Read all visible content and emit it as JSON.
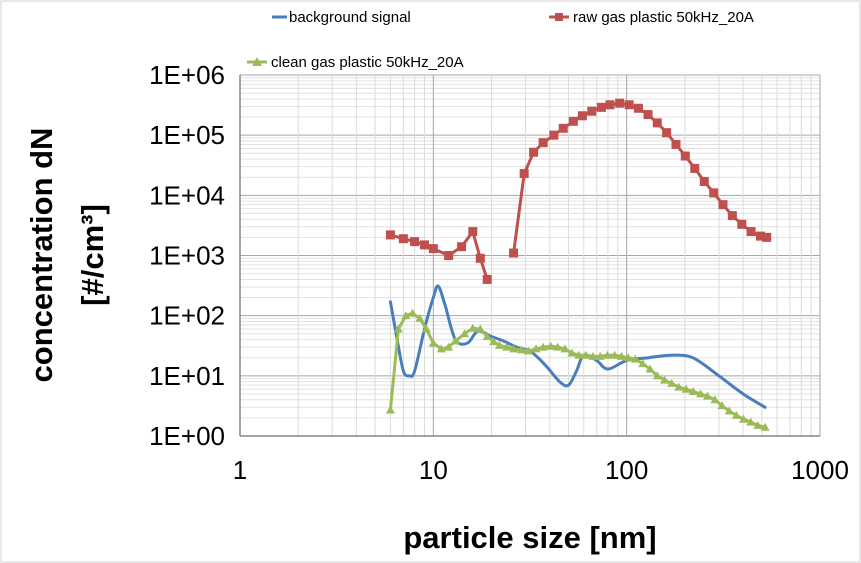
{
  "chart_data": {
    "type": "line",
    "xlabel": "particle size [nm]",
    "ylabel_line1": "concentration dN",
    "ylabel_line2": "[#/cm³]",
    "xscale": "log",
    "yscale": "log",
    "xlim": [
      1,
      1000
    ],
    "ylim": [
      1,
      1000000
    ],
    "x_tick_labels": [
      "1",
      "10",
      "100",
      "1000"
    ],
    "y_tick_labels": [
      "1E+00",
      "1E+01",
      "1E+02",
      "1E+03",
      "1E+04",
      "1E+05",
      "1E+06"
    ],
    "grid": true,
    "legend_position": "top",
    "series": [
      {
        "name": "background signal",
        "color": "#4a7ebb",
        "marker": "none",
        "x": [
          6,
          6.5,
          7,
          7.5,
          8,
          9,
          10,
          10.6,
          11.5,
          13,
          15,
          17,
          20,
          23,
          27,
          32,
          38,
          45,
          50,
          55,
          60,
          70,
          80,
          100,
          130,
          170,
          220,
          300,
          400,
          520
        ],
        "y": [
          170,
          40,
          12,
          10,
          12,
          60,
          200,
          310,
          150,
          40,
          35,
          55,
          45,
          38,
          30,
          25,
          15,
          8,
          7,
          12,
          22,
          18,
          13,
          18,
          20,
          22,
          20,
          10,
          5,
          3
        ]
      },
      {
        "name": "raw gas  plastic  50kHz_20A",
        "color": "#c0504d",
        "marker": "square",
        "segments": [
          {
            "x": [
              6,
              7,
              8,
              9,
              10,
              12,
              14,
              16,
              17.5,
              19
            ],
            "y": [
              2200,
              1900,
              1700,
              1500,
              1300,
              1000,
              1400,
              2500,
              900,
              400
            ]
          },
          {
            "x": [
              26,
              29.5,
              33,
              37,
              42,
              47,
              53,
              59,
              66,
              74,
              82,
              92,
              103,
              115,
              129,
              144,
              161,
              180,
              201,
              225,
              252,
              282,
              315,
              352,
              394,
              440,
              492,
              530
            ],
            "y": [
              1100,
              23000,
              52000,
              75000,
              100000,
              130000,
              170000,
              210000,
              250000,
              290000,
              320000,
              340000,
              320000,
              280000,
              220000,
              160000,
              110000,
              70000,
              45000,
              28000,
              17000,
              11000,
              7000,
              4600,
              3300,
              2500,
              2100,
              2000
            ]
          }
        ]
      },
      {
        "name": "clean gas plastic 50kHz_20A",
        "color": "#9bbb59",
        "marker": "triangle",
        "x": [
          6,
          6.6,
          7.2,
          7.8,
          8.5,
          9.2,
          10,
          11,
          12,
          13,
          14.5,
          16,
          17.5,
          19,
          20.5,
          22,
          24,
          26,
          28.5,
          31,
          34,
          37,
          40.5,
          44,
          48,
          52,
          56.5,
          61.5,
          67,
          73,
          79.5,
          86.5,
          94,
          102,
          111,
          121,
          132,
          144,
          157,
          171,
          186,
          203,
          221,
          241,
          262,
          286,
          311,
          339,
          369,
          402,
          438,
          477,
          520
        ],
        "y": [
          2.7,
          60,
          100,
          110,
          90,
          60,
          35,
          28,
          30,
          38,
          50,
          62,
          60,
          45,
          37,
          32,
          30,
          28,
          27,
          26,
          28,
          30,
          31,
          30,
          28,
          24,
          22,
          22,
          21,
          21,
          22,
          22,
          21,
          20,
          19,
          16,
          13,
          10,
          8.5,
          7.5,
          6.5,
          6,
          5.5,
          5,
          4.6,
          4,
          3.2,
          2.6,
          2.2,
          1.9,
          1.7,
          1.5,
          1.4
        ]
      }
    ]
  }
}
